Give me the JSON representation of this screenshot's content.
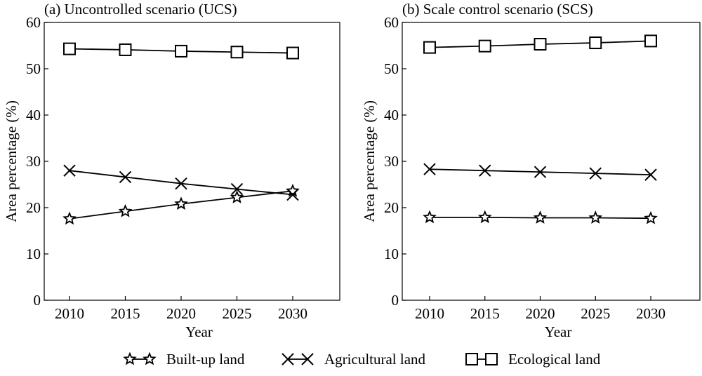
{
  "chart_data": [
    {
      "type": "line",
      "title": "(a) Uncontrolled scenario (UCS)",
      "xlabel": "Year",
      "ylabel": "Area percentage (%)",
      "x": [
        2010,
        2015,
        2020,
        2025,
        2030
      ],
      "ylim": [
        0,
        60
      ],
      "yticks": [
        0,
        10,
        20,
        30,
        40,
        50,
        60
      ],
      "grid": false,
      "series": [
        {
          "name": "Built-up land",
          "marker": "star",
          "values": [
            17.6,
            19.2,
            20.8,
            22.2,
            23.6
          ]
        },
        {
          "name": "Agricultural land",
          "marker": "x",
          "values": [
            28.0,
            26.6,
            25.2,
            24.0,
            22.8
          ]
        },
        {
          "name": "Ecological land",
          "marker": "square",
          "values": [
            54.3,
            54.1,
            53.8,
            53.6,
            53.4
          ]
        }
      ]
    },
    {
      "type": "line",
      "title": "(b) Scale control scenario (SCS)",
      "xlabel": "Year",
      "ylabel": "Area percentage (%)",
      "x": [
        2010,
        2015,
        2020,
        2025,
        2030
      ],
      "ylim": [
        0,
        60
      ],
      "yticks": [
        0,
        10,
        20,
        30,
        40,
        50,
        60
      ],
      "grid": false,
      "series": [
        {
          "name": "Built-up land",
          "marker": "star",
          "values": [
            17.9,
            17.9,
            17.8,
            17.8,
            17.7
          ]
        },
        {
          "name": "Agricultural land",
          "marker": "x",
          "values": [
            28.3,
            28.0,
            27.7,
            27.4,
            27.1
          ]
        },
        {
          "name": "Ecological land",
          "marker": "square",
          "values": [
            54.6,
            54.9,
            55.3,
            55.6,
            56.0
          ]
        }
      ]
    }
  ],
  "legend": {
    "placement": "bottom",
    "items": [
      {
        "label": "Built-up land",
        "marker": "star"
      },
      {
        "label": "Agricultural land",
        "marker": "x"
      },
      {
        "label": "Ecological land",
        "marker": "square"
      }
    ]
  }
}
